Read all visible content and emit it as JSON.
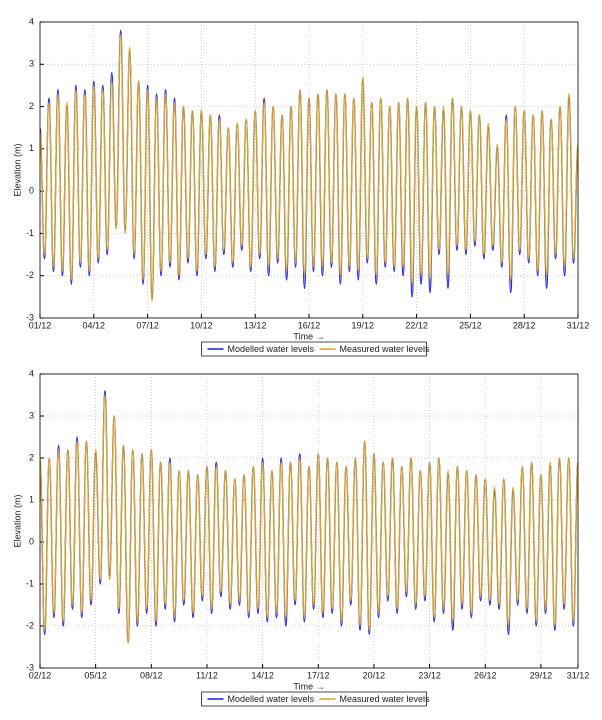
{
  "chart_data": [
    {
      "type": "line",
      "xlabel": "Time →",
      "ylabel": "Elevation (m)",
      "xlim": [
        1,
        31
      ],
      "ylim": [
        -3,
        4
      ],
      "yticks": [
        -3,
        -2,
        -1,
        0,
        1,
        2,
        3,
        4
      ],
      "xticks": [
        {
          "value": 1,
          "label": "01/12"
        },
        {
          "value": 4,
          "label": "04/12"
        },
        {
          "value": 7,
          "label": "07/12"
        },
        {
          "value": 10,
          "label": "10/12"
        },
        {
          "value": 13,
          "label": "13/12"
        },
        {
          "value": 16,
          "label": "16/12"
        },
        {
          "value": 19,
          "label": "19/12"
        },
        {
          "value": 22,
          "label": "22/12"
        },
        {
          "value": 25,
          "label": "25/12"
        },
        {
          "value": 28,
          "label": "28/12"
        },
        {
          "value": 31,
          "label": "31/12"
        }
      ],
      "grid": true,
      "legend": "bottom",
      "x": [
        1,
        1.25,
        1.5,
        1.75,
        2,
        2.25,
        2.5,
        2.75,
        3,
        3.25,
        3.5,
        3.75,
        4,
        4.25,
        4.5,
        4.75,
        5,
        5.25,
        5.5,
        5.75,
        6,
        6.25,
        6.5,
        6.75,
        7,
        7.25,
        7.5,
        7.75,
        8,
        8.25,
        8.5,
        8.75,
        9,
        9.25,
        9.5,
        9.75,
        10,
        10.25,
        10.5,
        10.75,
        11,
        11.25,
        11.5,
        11.75,
        12,
        12.25,
        12.5,
        12.75,
        13,
        13.25,
        13.5,
        13.75,
        14,
        14.25,
        14.5,
        14.75,
        15,
        15.25,
        15.5,
        15.75,
        16,
        16.25,
        16.5,
        16.75,
        17,
        17.25,
        17.5,
        17.75,
        18,
        18.25,
        18.5,
        18.75,
        19,
        19.25,
        19.5,
        19.75,
        20,
        20.25,
        20.5,
        20.75,
        21,
        21.25,
        21.5,
        21.75,
        22,
        22.25,
        22.5,
        22.75,
        23,
        23.25,
        23.5,
        23.75,
        24,
        24.25,
        24.5,
        24.75,
        25,
        25.25,
        25.5,
        25.75,
        26,
        26.25,
        26.5,
        26.75,
        27,
        27.25,
        27.5,
        27.75,
        28,
        28.25,
        28.5,
        28.75,
        29,
        29.25,
        29.5,
        29.75,
        30,
        30.25,
        30.5,
        30.75,
        31
      ],
      "series": [
        {
          "name": "Modelled water levels",
          "color": "#1a1ae6",
          "values": [
            1.5,
            -1.6,
            2.2,
            -1.9,
            2.4,
            -2.0,
            2.0,
            -2.2,
            2.5,
            -1.8,
            2.4,
            -2.0,
            2.6,
            -1.7,
            2.5,
            -1.5,
            2.8,
            -0.8,
            3.8,
            -0.9,
            3.3,
            -1.6,
            2.6,
            -2.2,
            2.5,
            -2.5,
            2.3,
            -2.0,
            2.4,
            -1.8,
            2.2,
            -2.1,
            2.0,
            -1.7,
            1.9,
            -2.0,
            1.9,
            -1.6,
            1.8,
            -1.9,
            1.8,
            -1.5,
            1.5,
            -1.8,
            1.6,
            -1.4,
            1.7,
            -1.9,
            1.9,
            -1.6,
            2.2,
            -2.0,
            2.0,
            -1.7,
            1.8,
            -2.1,
            2.0,
            -1.8,
            2.4,
            -2.3,
            2.2,
            -1.9,
            2.3,
            -2.0,
            2.4,
            -1.8,
            2.3,
            -2.2,
            2.3,
            -1.9,
            2.2,
            -2.1,
            2.6,
            -1.7,
            2.1,
            -2.2,
            2.2,
            -1.8,
            2.0,
            -1.9,
            2.1,
            -2.0,
            2.2,
            -2.5,
            2.0,
            -2.2,
            2.1,
            -2.4,
            2.0,
            -1.5,
            1.9,
            -2.3,
            2.2,
            -1.4,
            2.0,
            -1.5,
            1.9,
            -1.3,
            1.8,
            -1.6,
            1.5,
            -1.4,
            1.0,
            -1.8,
            1.8,
            -2.4,
            2.0,
            -1.5,
            1.9,
            -1.7,
            1.8,
            -2.0,
            1.9,
            -2.3,
            1.7,
            -1.6,
            2.0,
            -2.0,
            2.2,
            -1.7,
            1.0
          ]
        },
        {
          "name": "Measured water levels",
          "color": "#d9a520",
          "values": [
            1.4,
            -1.5,
            2.1,
            -1.8,
            2.3,
            -1.9,
            2.1,
            -2.1,
            2.4,
            -1.7,
            2.3,
            -1.9,
            2.5,
            -1.6,
            2.4,
            -1.4,
            2.6,
            -0.9,
            3.7,
            -1.0,
            3.4,
            -1.5,
            2.6,
            -2.1,
            2.4,
            -2.6,
            2.2,
            -1.9,
            2.3,
            -1.7,
            2.1,
            -2.0,
            2.0,
            -1.6,
            1.9,
            -1.9,
            1.9,
            -1.5,
            1.8,
            -1.8,
            1.7,
            -1.4,
            1.5,
            -1.7,
            1.6,
            -1.3,
            1.7,
            -1.8,
            1.9,
            -1.5,
            2.1,
            -1.8,
            2.0,
            -1.6,
            1.8,
            -1.9,
            2.0,
            -1.7,
            2.4,
            -2.0,
            2.2,
            -1.8,
            2.3,
            -1.8,
            2.4,
            -1.7,
            2.3,
            -2.0,
            2.3,
            -1.8,
            2.2,
            -1.9,
            2.7,
            -1.6,
            2.1,
            -2.0,
            2.2,
            -1.7,
            2.0,
            -1.8,
            2.1,
            -1.8,
            2.2,
            -2.2,
            2.0,
            -2.0,
            2.1,
            -2.1,
            2.0,
            -1.4,
            2.0,
            -2.0,
            2.2,
            -1.3,
            2.0,
            -1.4,
            1.9,
            -1.2,
            1.8,
            -1.5,
            1.6,
            -1.3,
            1.1,
            -1.7,
            1.7,
            -2.1,
            2.0,
            -1.4,
            1.9,
            -1.6,
            1.8,
            -1.9,
            1.9,
            -2.0,
            1.7,
            -1.5,
            2.0,
            -1.8,
            2.3,
            -1.6,
            1.1
          ]
        }
      ]
    },
    {
      "type": "line",
      "xlabel": "Time →",
      "ylabel": "Elevation (m)",
      "xlim": [
        2,
        31
      ],
      "ylim": [
        -3,
        4
      ],
      "yticks": [
        -3,
        -2,
        -1,
        0,
        1,
        2,
        3,
        4
      ],
      "xticks": [
        {
          "value": 2,
          "label": "02/12"
        },
        {
          "value": 5,
          "label": "05/12"
        },
        {
          "value": 8,
          "label": "08/12"
        },
        {
          "value": 11,
          "label": "11/12"
        },
        {
          "value": 14,
          "label": "14/12"
        },
        {
          "value": 17,
          "label": "17/12"
        },
        {
          "value": 20,
          "label": "20/12"
        },
        {
          "value": 23,
          "label": "23/12"
        },
        {
          "value": 26,
          "label": "26/12"
        },
        {
          "value": 29,
          "label": "29/12"
        },
        {
          "value": 31,
          "label": "31/12"
        }
      ],
      "grid": true,
      "legend": "bottom",
      "x": [
        2,
        2.25,
        2.5,
        2.75,
        3,
        3.25,
        3.5,
        3.75,
        4,
        4.25,
        4.5,
        4.75,
        5,
        5.25,
        5.5,
        5.75,
        6,
        6.25,
        6.5,
        6.75,
        7,
        7.25,
        7.5,
        7.75,
        8,
        8.25,
        8.5,
        8.75,
        9,
        9.25,
        9.5,
        9.75,
        10,
        10.25,
        10.5,
        10.75,
        11,
        11.25,
        11.5,
        11.75,
        12,
        12.25,
        12.5,
        12.75,
        13,
        13.25,
        13.5,
        13.75,
        14,
        14.25,
        14.5,
        14.75,
        15,
        15.25,
        15.5,
        15.75,
        16,
        16.25,
        16.5,
        16.75,
        17,
        17.25,
        17.5,
        17.75,
        18,
        18.25,
        18.5,
        18.75,
        19,
        19.25,
        19.5,
        19.75,
        20,
        20.25,
        20.5,
        20.75,
        21,
        21.25,
        21.5,
        21.75,
        22,
        22.25,
        22.5,
        22.75,
        23,
        23.25,
        23.5,
        23.75,
        24,
        24.25,
        24.5,
        24.75,
        25,
        25.25,
        25.5,
        25.75,
        26,
        26.25,
        26.5,
        26.75,
        27,
        27.25,
        27.5,
        27.75,
        28,
        28.25,
        28.5,
        28.75,
        29,
        29.25,
        29.5,
        29.75,
        30,
        30.25,
        30.5,
        30.75,
        31
      ],
      "series": [
        {
          "name": "Modelled water levels",
          "color": "#1a1ae6",
          "values": [
            1.9,
            -2.2,
            2.0,
            -1.8,
            2.3,
            -2.0,
            2.2,
            -1.6,
            2.5,
            -1.8,
            2.4,
            -1.5,
            2.1,
            -1.0,
            3.6,
            -0.8,
            3.0,
            -1.7,
            2.3,
            -2.4,
            2.2,
            -2.0,
            2.1,
            -1.7,
            2.2,
            -2.0,
            1.9,
            -1.6,
            2.0,
            -1.9,
            1.7,
            -1.5,
            1.7,
            -1.8,
            1.6,
            -1.4,
            1.8,
            -1.7,
            1.9,
            -1.3,
            1.7,
            -1.6,
            1.5,
            -1.5,
            1.6,
            -1.8,
            1.8,
            -1.7,
            2.0,
            -1.9,
            1.7,
            -1.8,
            2.0,
            -2.0,
            1.9,
            -1.5,
            2.1,
            -1.9,
            1.8,
            -1.6,
            2.1,
            -1.8,
            2.0,
            -1.7,
            1.9,
            -2.0,
            1.8,
            -1.5,
            2.0,
            -2.1,
            2.4,
            -2.2,
            2.1,
            -1.8,
            1.9,
            -1.4,
            2.0,
            -1.7,
            1.8,
            -1.3,
            2.0,
            -1.6,
            1.7,
            -1.4,
            1.9,
            -1.9,
            2.0,
            -1.7,
            1.6,
            -2.1,
            1.8,
            -1.6,
            1.7,
            -1.8,
            1.6,
            -1.4,
            1.5,
            -1.5,
            1.2,
            -1.6,
            1.5,
            -2.2,
            1.2,
            -1.5,
            1.8,
            -1.7,
            1.9,
            -2.0,
            1.6,
            -1.7,
            1.8,
            -2.1,
            2.0,
            -1.6,
            2.0,
            -2.0,
            1.9
          ]
        },
        {
          "name": "Measured water levels",
          "color": "#d9a520",
          "values": [
            2.0,
            -2.1,
            2.0,
            -1.7,
            2.2,
            -1.9,
            2.2,
            -1.5,
            2.4,
            -1.7,
            2.4,
            -1.4,
            2.2,
            -0.9,
            3.5,
            -0.9,
            3.0,
            -1.6,
            2.3,
            -2.4,
            2.2,
            -1.9,
            2.1,
            -1.6,
            2.2,
            -1.9,
            1.9,
            -1.5,
            1.9,
            -1.8,
            1.7,
            -1.4,
            1.7,
            -1.7,
            1.6,
            -1.3,
            1.8,
            -1.6,
            1.8,
            -1.2,
            1.7,
            -1.5,
            1.5,
            -1.4,
            1.6,
            -1.7,
            1.8,
            -1.6,
            1.9,
            -1.8,
            1.7,
            -1.7,
            1.9,
            -1.8,
            1.9,
            -1.4,
            2.0,
            -1.8,
            1.8,
            -1.5,
            2.1,
            -1.7,
            2.0,
            -1.6,
            1.9,
            -1.9,
            1.8,
            -1.4,
            2.0,
            -2.0,
            2.4,
            -2.1,
            2.1,
            -1.7,
            1.9,
            -1.3,
            2.0,
            -1.6,
            1.8,
            -1.2,
            2.0,
            -1.5,
            1.7,
            -1.3,
            1.9,
            -1.8,
            2.0,
            -1.6,
            1.7,
            -1.9,
            1.8,
            -1.5,
            1.7,
            -1.7,
            1.6,
            -1.3,
            1.5,
            -1.4,
            1.3,
            -1.5,
            1.5,
            -2.0,
            1.3,
            -1.4,
            1.8,
            -1.6,
            1.9,
            -1.9,
            1.6,
            -1.6,
            1.9,
            -2.0,
            2.0,
            -1.5,
            2.0,
            -1.9,
            1.9
          ]
        }
      ]
    }
  ]
}
